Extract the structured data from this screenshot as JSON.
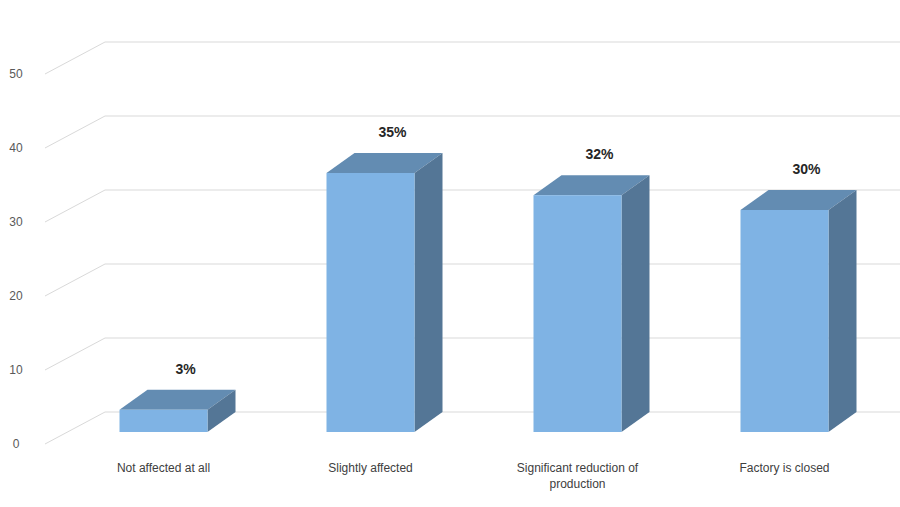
{
  "chart_data": {
    "type": "bar",
    "categories": [
      "Not affected at all",
      "Slightly affected",
      "Significant reduction of production",
      "Factory is closed"
    ],
    "values": [
      3,
      35,
      32,
      30
    ],
    "value_labels": [
      "3%",
      "35%",
      "32%",
      "30%"
    ],
    "color": "#7fb3e4",
    "ylim": [
      0,
      50
    ],
    "yticks": [
      0,
      10,
      20,
      30,
      40,
      50
    ],
    "grid": true,
    "data_labels": true
  }
}
